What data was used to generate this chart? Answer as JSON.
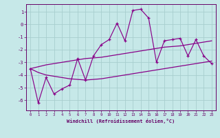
{
  "xlabel": "Windchill (Refroidissement éolien,°C)",
  "background_color": "#c6e8e8",
  "grid_color": "#a8cece",
  "line_color": "#880088",
  "text_color": "#660066",
  "spine_color": "#660066",
  "x_hours": [
    0,
    1,
    2,
    3,
    4,
    5,
    6,
    7,
    8,
    9,
    10,
    11,
    12,
    13,
    14,
    15,
    16,
    17,
    18,
    19,
    20,
    21,
    22,
    23
  ],
  "y_main": [
    -3.5,
    -6.2,
    -4.2,
    -5.5,
    -5.1,
    -4.8,
    -2.7,
    -4.4,
    -2.5,
    -1.6,
    -1.2,
    0.1,
    -1.3,
    1.1,
    1.2,
    0.5,
    -3.0,
    -1.3,
    -1.2,
    -1.1,
    -2.5,
    -1.2,
    -2.5,
    -3.1
  ],
  "y_line_upper": [
    -3.5,
    -3.35,
    -3.2,
    -3.1,
    -3.0,
    -2.9,
    -2.8,
    -2.7,
    -2.65,
    -2.6,
    -2.5,
    -2.4,
    -2.3,
    -2.2,
    -2.1,
    -2.0,
    -1.9,
    -1.8,
    -1.75,
    -1.7,
    -1.6,
    -1.5,
    -1.4,
    -1.3
  ],
  "y_line_lower": [
    -3.5,
    -3.8,
    -4.0,
    -4.1,
    -4.2,
    -4.3,
    -4.35,
    -4.4,
    -4.35,
    -4.3,
    -4.2,
    -4.1,
    -4.0,
    -3.9,
    -3.8,
    -3.7,
    -3.6,
    -3.5,
    -3.4,
    -3.3,
    -3.2,
    -3.1,
    -3.0,
    -2.9
  ],
  "ylim": [
    -6.8,
    1.6
  ],
  "xlim": [
    -0.5,
    23.5
  ],
  "yticks": [
    1,
    0,
    -1,
    -2,
    -3,
    -4,
    -5,
    -6
  ],
  "xticks": [
    0,
    1,
    2,
    3,
    4,
    5,
    6,
    7,
    8,
    9,
    10,
    11,
    12,
    13,
    14,
    15,
    16,
    17,
    18,
    19,
    20,
    21,
    22,
    23
  ]
}
